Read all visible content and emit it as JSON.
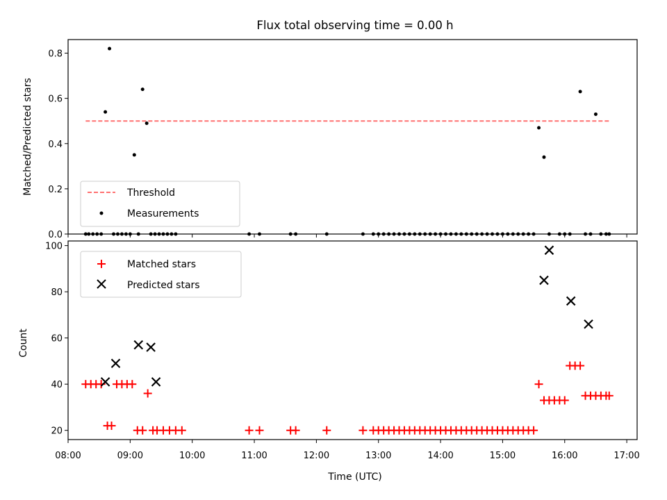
{
  "chart_data": [
    {
      "type": "scatter",
      "title": "Flux total observing time = 0.00 h",
      "xlabel": "",
      "ylabel": "Matched/Predicted stars",
      "ylim": [
        0,
        0.86
      ],
      "yticks": [
        0.0,
        0.2,
        0.4,
        0.6,
        0.8
      ],
      "ytick_labels": [
        "0.0",
        "0.2",
        "0.4",
        "0.6",
        "0.8"
      ],
      "xlim": [
        "08:00",
        "17:10"
      ],
      "x_unit": "time (HH:MM UTC)",
      "legend_location": "lower-left",
      "grid": false,
      "series": [
        {
          "name": "Threshold",
          "style": "dashed-line",
          "color": "#ff7070",
          "x": [
            "08:17",
            "16:43"
          ],
          "y": [
            0.5,
            0.5
          ]
        },
        {
          "name": "Measurements",
          "style": "dots",
          "color": "#000000",
          "x": [
            "08:17",
            "08:20",
            "08:24",
            "08:28",
            "08:32",
            "08:36",
            "08:40",
            "08:44",
            "08:48",
            "08:52",
            "08:56",
            "09:00",
            "09:04",
            "09:08",
            "09:12",
            "09:16",
            "09:20",
            "09:24",
            "09:28",
            "09:32",
            "09:36",
            "09:40",
            "09:44",
            "10:55",
            "11:05",
            "11:35",
            "11:40",
            "12:10",
            "12:45",
            "12:55",
            "13:00",
            "13:05",
            "13:10",
            "13:15",
            "13:20",
            "13:25",
            "13:30",
            "13:35",
            "13:40",
            "13:45",
            "13:50",
            "13:55",
            "14:00",
            "14:05",
            "14:10",
            "14:15",
            "14:20",
            "14:25",
            "14:30",
            "14:35",
            "14:40",
            "14:45",
            "14:50",
            "14:55",
            "15:00",
            "15:05",
            "15:10",
            "15:15",
            "15:20",
            "15:25",
            "15:30",
            "15:35",
            "15:40",
            "15:45",
            "15:55",
            "16:00",
            "16:05",
            "16:15",
            "16:20",
            "16:25",
            "16:30",
            "16:35",
            "16:40",
            "16:43"
          ],
          "y": [
            0,
            0,
            0,
            0,
            0,
            0.54,
            0.82,
            0,
            0,
            0,
            0,
            0,
            0.35,
            0,
            0.64,
            0.49,
            0,
            0,
            0,
            0,
            0,
            0,
            0,
            0,
            0,
            0,
            0,
            0,
            0,
            0,
            0,
            0,
            0,
            0,
            0,
            0,
            0,
            0,
            0,
            0,
            0,
            0,
            0,
            0,
            0,
            0,
            0,
            0,
            0,
            0,
            0,
            0,
            0,
            0,
            0,
            0,
            0,
            0,
            0,
            0,
            0,
            0.47,
            0.34,
            0,
            0,
            0,
            0,
            0.63,
            0,
            0,
            0.53,
            0,
            0,
            0
          ]
        }
      ]
    },
    {
      "type": "scatter",
      "title": "",
      "xlabel": "Time (UTC)",
      "ylabel": "Count",
      "ylim": [
        16,
        102
      ],
      "yticks": [
        20,
        40,
        60,
        80,
        100
      ],
      "ytick_labels": [
        "20",
        "40",
        "60",
        "80",
        "100"
      ],
      "xlim": [
        "08:00",
        "17:10"
      ],
      "xticks": [
        "08:00",
        "09:00",
        "10:00",
        "11:00",
        "12:00",
        "13:00",
        "14:00",
        "15:00",
        "16:00",
        "17:00"
      ],
      "xtick_labels": [
        "08:00",
        "09:00",
        "10:00",
        "11:00",
        "12:00",
        "13:00",
        "14:00",
        "15:00",
        "16:00",
        "17:00"
      ],
      "legend_location": "upper-left",
      "grid": false,
      "series": [
        {
          "name": "Matched stars",
          "marker": "plus",
          "color": "#ff0000",
          "x": [
            "08:17",
            "08:22",
            "08:27",
            "08:32",
            "08:38",
            "08:42",
            "08:47",
            "08:52",
            "08:57",
            "09:02",
            "09:07",
            "09:12",
            "09:17",
            "09:22",
            "09:26",
            "09:32",
            "09:38",
            "09:44",
            "09:50",
            "10:55",
            "11:05",
            "11:35",
            "11:40",
            "12:10",
            "12:45",
            "12:55",
            "13:00",
            "13:05",
            "13:10",
            "13:15",
            "13:20",
            "13:25",
            "13:30",
            "13:35",
            "13:40",
            "13:45",
            "13:50",
            "13:55",
            "14:00",
            "14:05",
            "14:10",
            "14:15",
            "14:20",
            "14:25",
            "14:30",
            "14:35",
            "14:40",
            "14:45",
            "14:50",
            "14:55",
            "15:00",
            "15:05",
            "15:10",
            "15:15",
            "15:20",
            "15:25",
            "15:30",
            "15:35",
            "15:40",
            "15:45",
            "15:50",
            "15:55",
            "16:00",
            "16:05",
            "16:10",
            "16:15",
            "16:20",
            "16:25",
            "16:30",
            "16:35",
            "16:40",
            "16:43"
          ],
          "y": [
            40,
            40,
            40,
            40,
            22,
            22,
            40,
            40,
            40,
            40,
            20,
            20,
            36,
            20,
            20,
            20,
            20,
            20,
            20,
            20,
            20,
            20,
            20,
            20,
            20,
            20,
            20,
            20,
            20,
            20,
            20,
            20,
            20,
            20,
            20,
            20,
            20,
            20,
            20,
            20,
            20,
            20,
            20,
            20,
            20,
            20,
            20,
            20,
            20,
            20,
            20,
            20,
            20,
            20,
            20,
            20,
            20,
            40,
            33,
            33,
            33,
            33,
            33,
            48,
            48,
            48,
            35,
            35,
            35,
            35,
            35,
            35
          ]
        },
        {
          "name": "Predicted stars",
          "marker": "x",
          "color": "#000000",
          "x": [
            "08:36",
            "08:46",
            "09:08",
            "09:20",
            "09:25",
            "15:40",
            "15:45",
            "16:06",
            "16:23"
          ],
          "y": [
            41,
            49,
            57,
            56,
            41,
            85,
            98,
            76,
            66
          ]
        }
      ]
    }
  ]
}
